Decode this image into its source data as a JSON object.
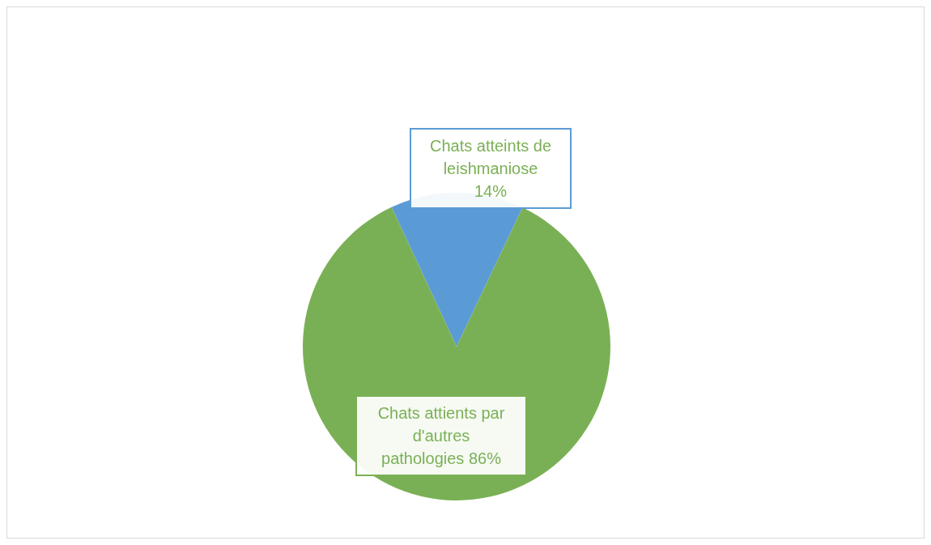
{
  "chart_data": {
    "type": "pie",
    "categories": [
      "Chats atteints de leishmaniose",
      "Chats attients par d'autres pathologies"
    ],
    "values": [
      14,
      86
    ],
    "colors": [
      "#5b9bd5",
      "#7ab055"
    ],
    "value_labels": [
      "14%",
      "86%"
    ]
  }
}
